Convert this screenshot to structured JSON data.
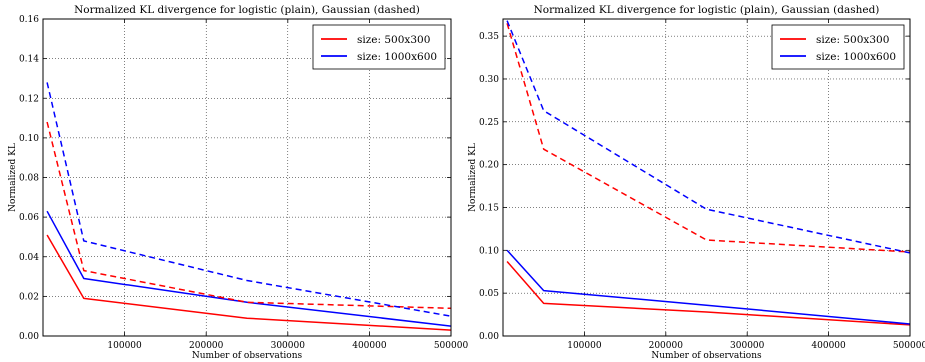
{
  "chart_data": [
    {
      "type": "line",
      "title": "Normalized KL divergence for logistic (plain), Gaussian (dashed)",
      "xlabel": "Number of observations",
      "ylabel": "Normalized KL",
      "xlim": [
        0,
        500000
      ],
      "ylim": [
        0,
        0.16
      ],
      "xticks": [
        100000,
        200000,
        300000,
        400000,
        500000
      ],
      "xtick_labels": [
        "100000",
        "200000",
        "300000",
        "400000",
        "500000"
      ],
      "yticks": [
        0,
        0.02,
        0.04,
        0.06,
        0.08,
        0.1,
        0.12,
        0.14,
        0.16
      ],
      "ytick_labels": [
        "0.00",
        "0.02",
        "0.04",
        "0.06",
        "0.08",
        "0.10",
        "0.12",
        "0.14",
        "0.16"
      ],
      "grid": true,
      "legend_position": "top-right",
      "legend": [
        {
          "label": "size: 500x300",
          "color": "#ff0000"
        },
        {
          "label": "size: 1000x600",
          "color": "#0000ff"
        }
      ],
      "series": [
        {
          "color": "#ff0000",
          "style": "solid",
          "x": [
            5000,
            50000,
            250000,
            500000
          ],
          "y": [
            0.051,
            0.019,
            0.009,
            0.003
          ]
        },
        {
          "color": "#0000ff",
          "style": "solid",
          "x": [
            5000,
            50000,
            250000,
            500000
          ],
          "y": [
            0.063,
            0.029,
            0.017,
            0.005
          ]
        },
        {
          "color": "#ff0000",
          "style": "dashed",
          "x": [
            5000,
            50000,
            250000,
            500000
          ],
          "y": [
            0.108,
            0.033,
            0.017,
            0.014
          ]
        },
        {
          "color": "#0000ff",
          "style": "dashed",
          "x": [
            5000,
            50000,
            250000,
            500000
          ],
          "y": [
            0.128,
            0.048,
            0.028,
            0.01
          ]
        }
      ]
    },
    {
      "type": "line",
      "title": "Normalized KL divergence for logistic (plain), Gaussian (dashed)",
      "xlabel": "Number of observations",
      "ylabel": "Normalized KL",
      "xlim": [
        0,
        500000
      ],
      "ylim": [
        0,
        0.37
      ],
      "xticks": [
        100000,
        200000,
        300000,
        400000,
        500000
      ],
      "xtick_labels": [
        "100000",
        "200000",
        "300000",
        "400000",
        "500000"
      ],
      "yticks": [
        0,
        0.05,
        0.1,
        0.15,
        0.2,
        0.25,
        0.3,
        0.35
      ],
      "ytick_labels": [
        "0.00",
        "0.05",
        "0.10",
        "0.15",
        "0.20",
        "0.25",
        "0.30",
        "0.35"
      ],
      "grid": true,
      "legend_position": "top-right",
      "legend": [
        {
          "label": "size: 500x300",
          "color": "#ff0000"
        },
        {
          "label": "size: 1000x600",
          "color": "#0000ff"
        }
      ],
      "series": [
        {
          "color": "#ff0000",
          "style": "solid",
          "x": [
            5000,
            50000,
            250000,
            500000
          ],
          "y": [
            0.087,
            0.038,
            0.028,
            0.013
          ]
        },
        {
          "color": "#0000ff",
          "style": "solid",
          "x": [
            5000,
            50000,
            250000,
            500000
          ],
          "y": [
            0.1,
            0.053,
            0.036,
            0.014
          ]
        },
        {
          "color": "#ff0000",
          "style": "dashed",
          "x": [
            5000,
            50000,
            250000,
            500000
          ],
          "y": [
            0.365,
            0.218,
            0.112,
            0.098
          ]
        },
        {
          "color": "#0000ff",
          "style": "dashed",
          "x": [
            5000,
            50000,
            250000,
            500000
          ],
          "y": [
            0.368,
            0.263,
            0.148,
            0.097
          ]
        }
      ]
    }
  ]
}
